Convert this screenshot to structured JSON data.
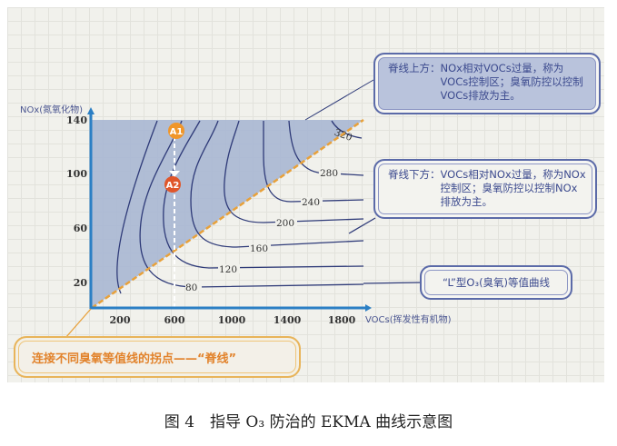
{
  "figure": {
    "caption": "图 4　指导 O₃ 防治的 EKMA 曲线示意图",
    "y_axis_label": "NOx(氮氧化物)",
    "x_axis_label": "VOCs(挥发性有机物)",
    "x_ticks": [
      "200",
      "600",
      "1000",
      "1400",
      "1800"
    ],
    "y_ticks": [
      "20",
      "60",
      "100",
      "140"
    ],
    "contour_labels": [
      "80",
      "120",
      "160",
      "200",
      "240",
      "280",
      "320"
    ],
    "points": [
      "A1",
      "A2"
    ],
    "callouts": [
      {
        "head": "脊线上方：",
        "body": "NOx相对VOCs过量，称为VOCs控制区；臭氧防控以控制VOCs排放为主。"
      },
      {
        "head": "脊线下方：",
        "body": "VOCs相对NOx过量，称为NOx控制区；臭氧防控以控制NOx排放为主。"
      },
      {
        "body": "“L”型O₃(臭氧)等值曲线"
      }
    ],
    "ridge_label": "连接不同臭氧等值线的拐点——“脊线”",
    "colors": {
      "voc_region": "#a9b7d3",
      "axis": "#2b7fc4",
      "contour": "#2e3a78",
      "ridge": "#e8a13a",
      "A1": "#f0962a",
      "A2": "#e0562a"
    }
  }
}
